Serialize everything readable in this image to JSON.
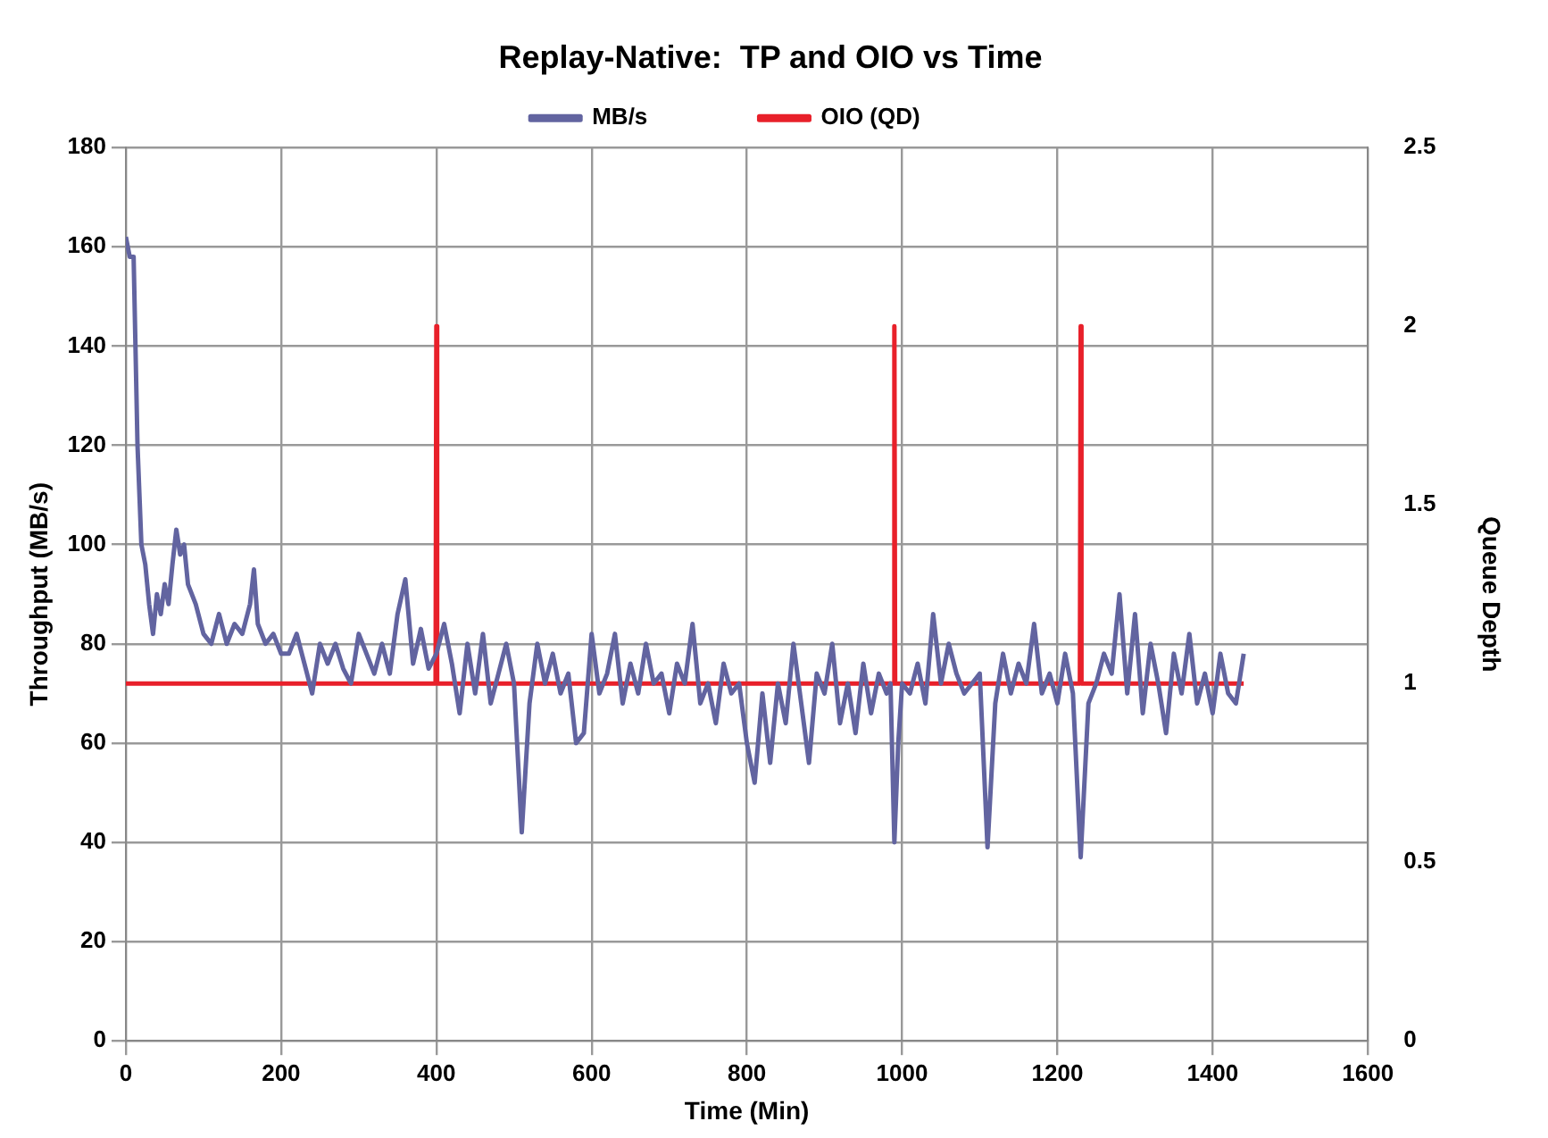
{
  "chart_data": {
    "type": "line",
    "title": "Replay-Native:  TP and OIO vs Time",
    "xlabel": "Time (Min)",
    "ylabel": "Throughput (MB/s)",
    "y2label": "Queue Depth",
    "xlim": [
      0,
      1600
    ],
    "xticks": [
      0,
      200,
      400,
      600,
      800,
      1000,
      1200,
      1400,
      1600
    ],
    "ylim": [
      0,
      180
    ],
    "yticks": [
      0,
      20,
      40,
      60,
      80,
      100,
      120,
      140,
      160,
      180
    ],
    "y2lim": [
      0,
      2.5
    ],
    "y2ticks": [
      0,
      0.5,
      1,
      1.5,
      2,
      2.5
    ],
    "grid": true,
    "legend": "top",
    "marker": "none",
    "line_style": "solid",
    "series": [
      {
        "name": "MB/s",
        "color": "#6264a0",
        "x": [
          0,
          5,
          10,
          15,
          20,
          25,
          30,
          35,
          40,
          45,
          50,
          55,
          60,
          65,
          70,
          75,
          80,
          90,
          100,
          110,
          120,
          130,
          140,
          150,
          160,
          165,
          170,
          180,
          190,
          200,
          210,
          220,
          230,
          240,
          250,
          260,
          270,
          280,
          290,
          300,
          310,
          320,
          330,
          340,
          350,
          360,
          370,
          380,
          390,
          400,
          410,
          420,
          430,
          440,
          450,
          460,
          470,
          480,
          490,
          500,
          510,
          520,
          530,
          540,
          550,
          560,
          570,
          580,
          590,
          600,
          610,
          620,
          630,
          640,
          650,
          660,
          670,
          680,
          690,
          700,
          710,
          720,
          730,
          740,
          750,
          760,
          770,
          780,
          790,
          800,
          810,
          820,
          830,
          840,
          850,
          860,
          870,
          880,
          890,
          900,
          910,
          920,
          930,
          940,
          950,
          960,
          970,
          980,
          985,
          990,
          995,
          1000,
          1010,
          1020,
          1030,
          1040,
          1050,
          1060,
          1070,
          1080,
          1090,
          1100,
          1110,
          1120,
          1130,
          1140,
          1150,
          1160,
          1170,
          1180,
          1190,
          1200,
          1210,
          1220,
          1230,
          1240,
          1250,
          1260,
          1270,
          1280,
          1290,
          1300,
          1310,
          1320,
          1330,
          1340,
          1350,
          1360,
          1370,
          1380,
          1390,
          1400,
          1410,
          1420,
          1430,
          1440
        ],
        "values": [
          162,
          158,
          158,
          120,
          100,
          96,
          88,
          82,
          90,
          86,
          92,
          88,
          96,
          103,
          98,
          100,
          92,
          88,
          82,
          80,
          86,
          80,
          84,
          82,
          88,
          95,
          84,
          80,
          82,
          78,
          78,
          82,
          76,
          70,
          80,
          76,
          80,
          75,
          72,
          82,
          78,
          74,
          80,
          74,
          86,
          93,
          76,
          83,
          75,
          78,
          84,
          76,
          66,
          80,
          70,
          82,
          68,
          74,
          80,
          72,
          42,
          68,
          80,
          72,
          78,
          70,
          74,
          60,
          62,
          82,
          70,
          74,
          82,
          68,
          76,
          70,
          80,
          72,
          74,
          66,
          76,
          72,
          84,
          68,
          72,
          64,
          76,
          70,
          72,
          60,
          52,
          70,
          56,
          72,
          64,
          80,
          68,
          56,
          74,
          70,
          80,
          64,
          72,
          62,
          76,
          66,
          74,
          70,
          72,
          40,
          60,
          72,
          70,
          76,
          68,
          86,
          72,
          80,
          74,
          70,
          72,
          74,
          39,
          68,
          78,
          70,
          76,
          72,
          84,
          70,
          74,
          68,
          78,
          70,
          37,
          68,
          72,
          78,
          74,
          90,
          70,
          86,
          66,
          80,
          72,
          62,
          78,
          70,
          82,
          68,
          74,
          66,
          78,
          70,
          68,
          78
        ]
      },
      {
        "name": "OIO (QD)",
        "color": "#e8202a",
        "axis": "y2",
        "x": [
          0,
          399,
          400,
          401,
          989,
          990,
          991,
          1229,
          1230,
          1231,
          1440
        ],
        "values": [
          1,
          1,
          2,
          1,
          1,
          2,
          1,
          1,
          2,
          1,
          1
        ]
      }
    ]
  }
}
